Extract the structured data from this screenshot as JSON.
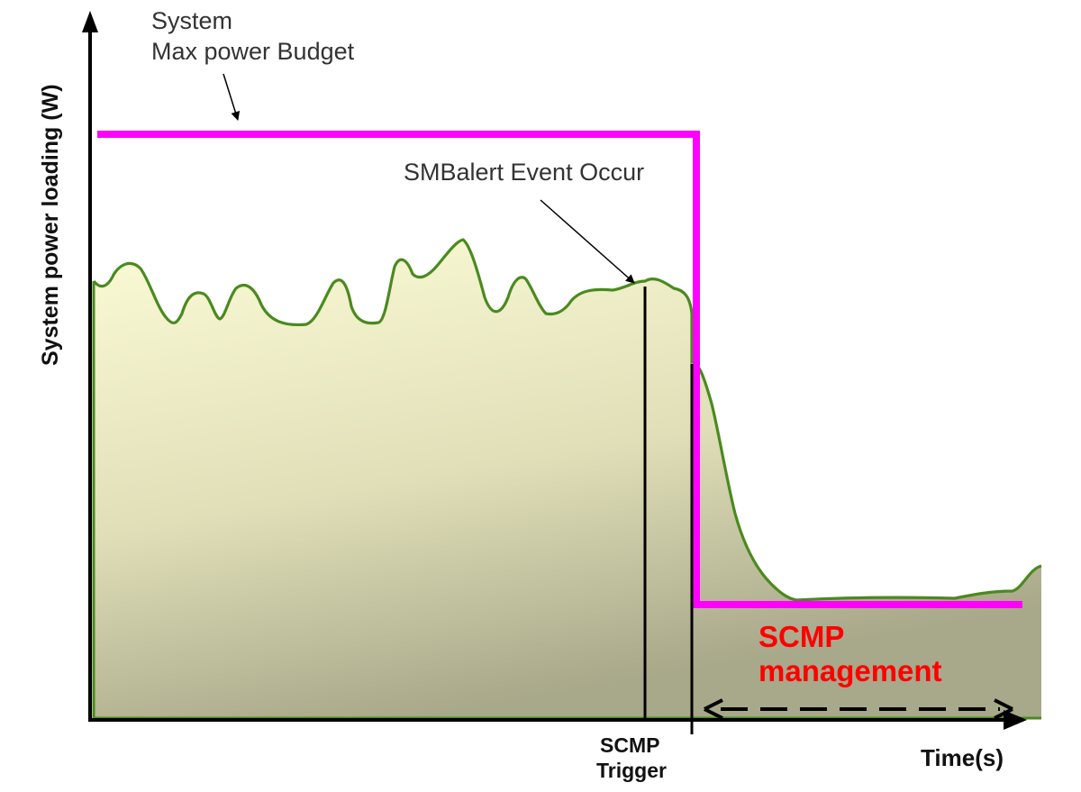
{
  "labels": {
    "y_axis": "System power loading (W)",
    "x_axis": "Time(s)",
    "budget_line1": "System",
    "budget_line2": "Max power Budget",
    "smbalert": "SMBalert Event Occur",
    "trigger_line1": "SCMP",
    "trigger_line2": "Trigger",
    "management_line1": "SCMP",
    "management_line2": "management"
  },
  "colors": {
    "budget_line": "#ff00ff",
    "load_curve": "#4a8a1e",
    "area_top": "#fbfbd6",
    "area_bottom": "#a8a88a",
    "management_text": "#ff0000",
    "axes": "#000000"
  }
}
